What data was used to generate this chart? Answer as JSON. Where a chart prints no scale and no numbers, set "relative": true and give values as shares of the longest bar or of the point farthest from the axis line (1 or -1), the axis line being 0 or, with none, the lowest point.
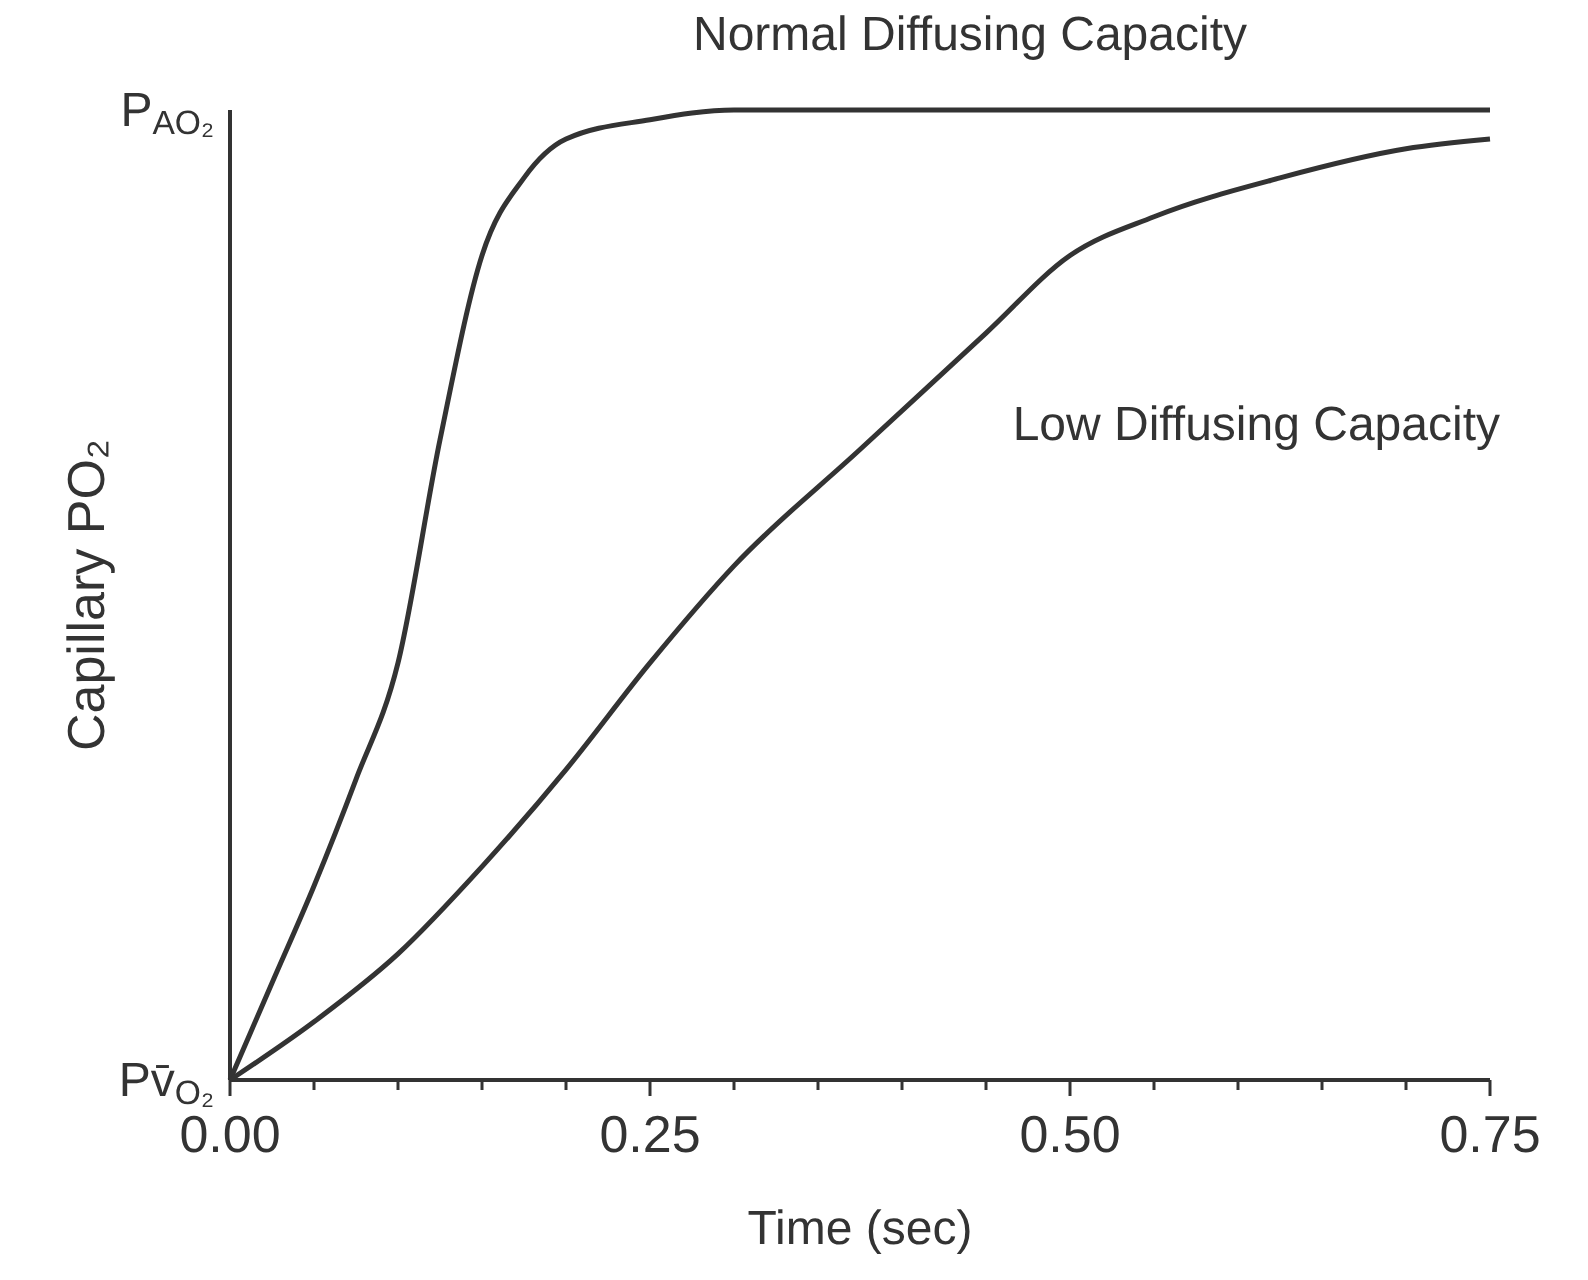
{
  "chart_data": {
    "type": "line",
    "xlabel": "Time (sec)",
    "ylabel": "Capillary PO₂",
    "xlim": [
      0,
      0.75
    ],
    "relative": true,
    "annotations": [
      "P$_{AO₂}$",
      {
        "text": "Pv̄$_{O₂}$",
        "x": 0,
        "y": 0
      }
    ],
    "xticks": [
      {
        "value": 0,
        "label": "0.00"
      },
      {
        "value": 0.05,
        "label": null
      },
      {
        "value": 0.1,
        "label": null
      },
      {
        "value": 0.15,
        "label": null
      },
      {
        "value": 0.2,
        "label": null
      },
      {
        "value": 0.25,
        "label": "0.25"
      },
      {
        "value": 0.3,
        "label": null
      },
      {
        "value": 0.35,
        "label": null
      },
      {
        "value": 0.4,
        "label": null
      },
      {
        "value": 0.45,
        "label": null
      },
      {
        "value": 0.5,
        "label": "0.50"
      },
      {
        "value": 0.55,
        "label": null
      },
      {
        "value": 0.6,
        "label": null
      },
      {
        "value": 0.65,
        "label": null
      },
      {
        "value": 0.7,
        "label": null
      },
      {
        "value": 0.75,
        "label": "0.75"
      }
    ],
    "marker": "none",
    "line_style": "solid",
    "series": [
      {
        "name": "Normal Diffusing Capacity",
        "color": "#333333",
        "x": [
          0,
          0.025,
          0.05,
          0.075,
          0.1,
          0.125,
          0.15,
          0.175,
          0.2,
          0.25,
          0.3,
          0.4,
          0.5,
          0.6,
          0.75
        ],
        "values": [
          0,
          0.1,
          0.2,
          0.31,
          0.43,
          0.66,
          0.85,
          0.93,
          0.97,
          0.99,
          1,
          1,
          1,
          1,
          1
        ]
      },
      {
        "name": "Low Diffusing Capacity",
        "color": "#333333",
        "x": [
          0,
          0.05,
          0.1,
          0.15,
          0.2,
          0.25,
          0.3,
          0.375,
          0.45,
          0.5,
          0.55,
          0.625,
          0.7,
          0.75
        ],
        "values": [
          0,
          0.06,
          0.13,
          0.22,
          0.32,
          0.43,
          0.53,
          0.65,
          0.77,
          0.85,
          0.89,
          0.93,
          0.96,
          0.97
        ]
      }
    ]
  }
}
